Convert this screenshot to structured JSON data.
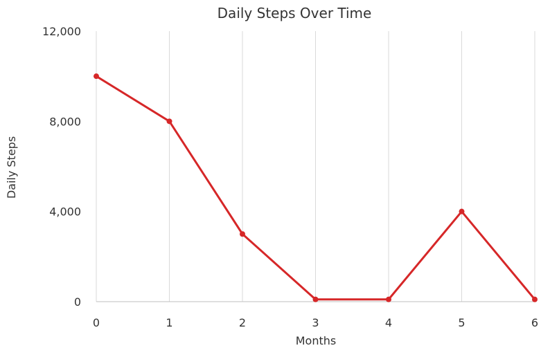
{
  "chart_data": {
    "type": "line",
    "title": "Daily Steps Over Time",
    "xlabel": "Months",
    "ylabel": "Daily Steps",
    "x": [
      0,
      1,
      2,
      3,
      4,
      5,
      6
    ],
    "series": [
      {
        "values": [
          10000,
          8000,
          3000,
          100,
          100,
          4000,
          100
        ],
        "color": "#d62728"
      }
    ],
    "xlim": [
      0,
      6
    ],
    "ylim": [
      0,
      12000
    ],
    "y_ticks": [
      0,
      4000,
      8000,
      12000
    ],
    "y_tick_labels": [
      "0",
      "4,000",
      "8,000",
      "12,000"
    ],
    "x_tick_labels": [
      "0",
      "1",
      "2",
      "3",
      "4",
      "5",
      "6"
    ],
    "grid": "vertical",
    "legend": "none",
    "markers": true
  }
}
